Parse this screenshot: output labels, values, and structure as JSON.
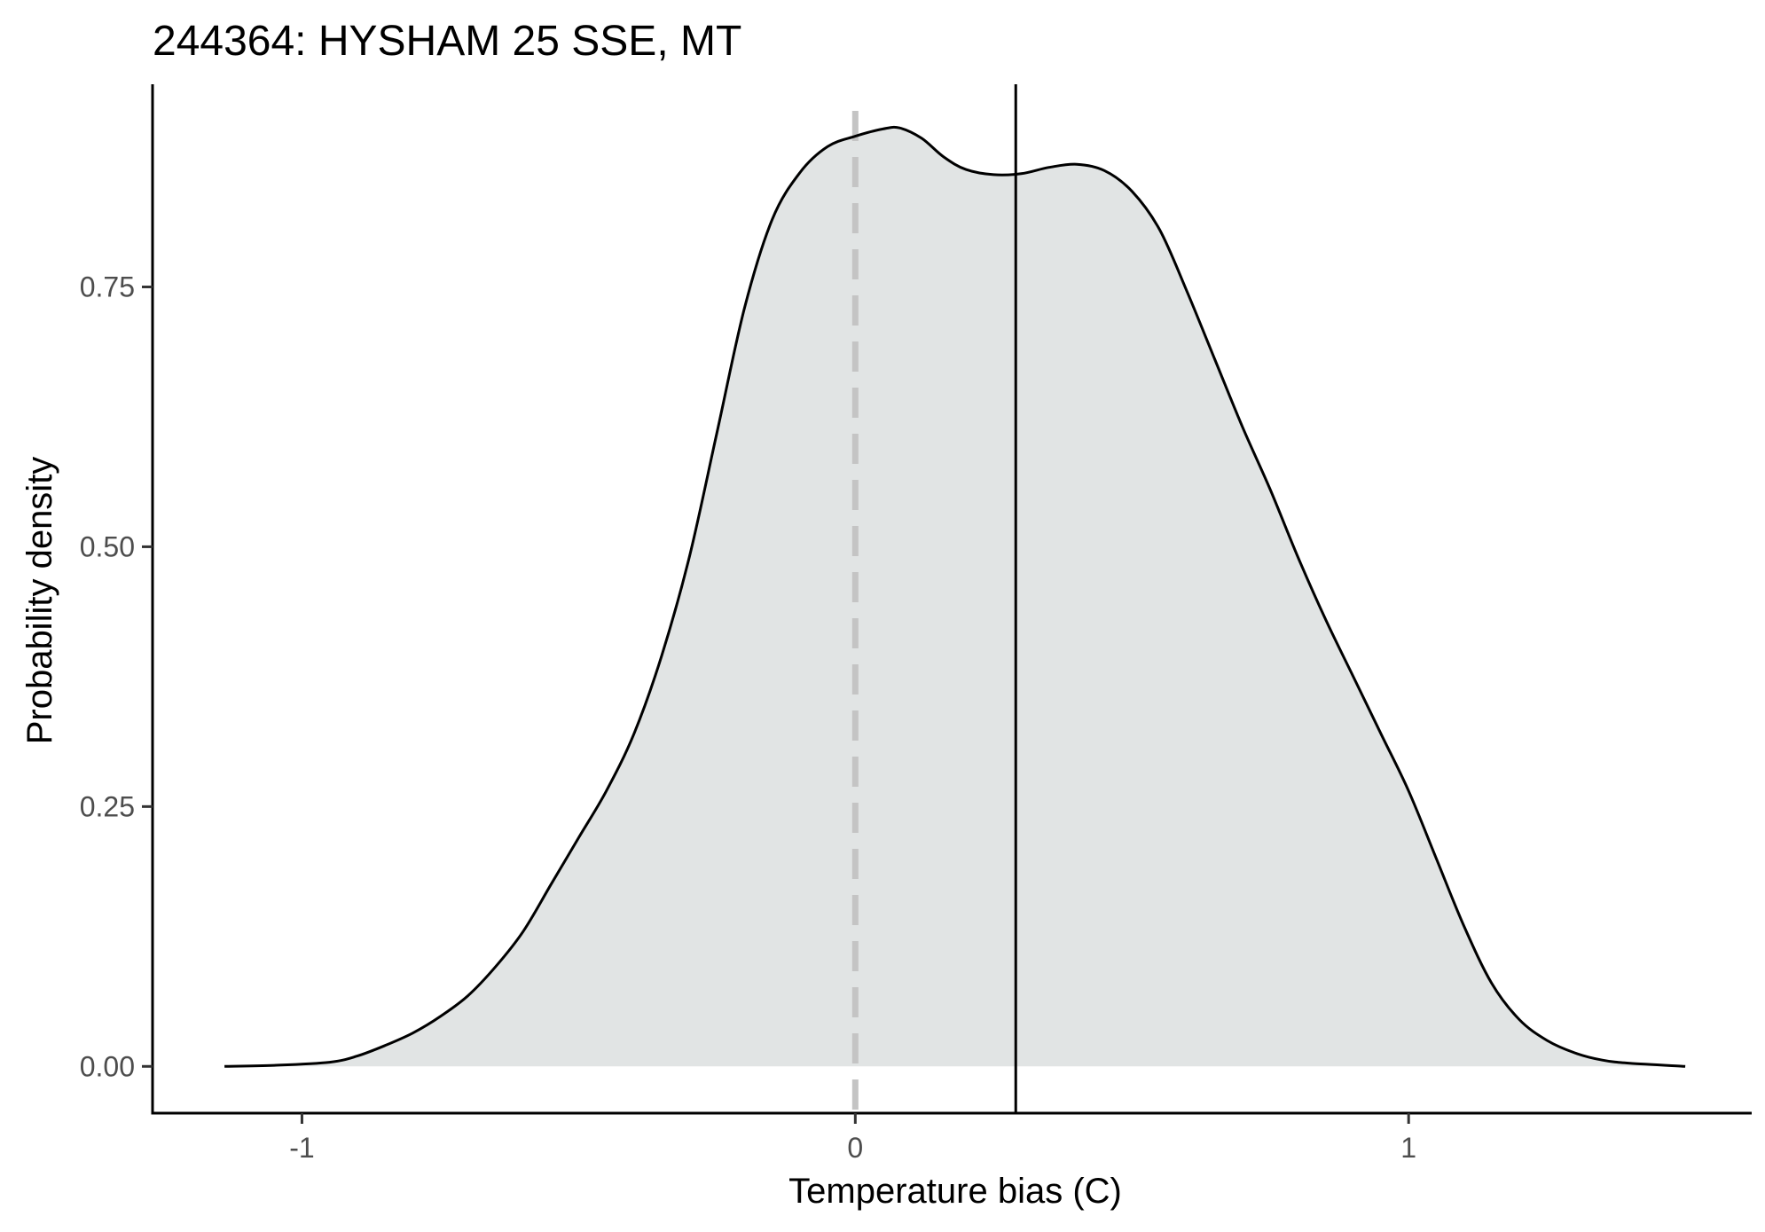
{
  "chart_data": {
    "type": "area",
    "title": "244364: HYSHAM 25 SSE, MT",
    "xlabel": "Temperature bias (C)",
    "ylabel": "Probability density",
    "xlim": [
      -1.27,
      1.62
    ],
    "ylim": [
      -0.045,
      0.945
    ],
    "x_ticks": [
      -1,
      0,
      1
    ],
    "x_tick_labels": [
      "-1",
      "0",
      "1"
    ],
    "y_ticks": [
      0,
      0.25,
      0.5,
      0.75
    ],
    "y_tick_labels": [
      "0.00",
      "0.25",
      "0.50",
      "0.75"
    ],
    "grid": false,
    "legend": "none",
    "reference_lines": [
      {
        "x": 0,
        "style": "dashed",
        "color": "#c4c4c4"
      },
      {
        "x": 0.29,
        "style": "solid",
        "color": "#000000"
      }
    ],
    "series": [
      {
        "fill": "#e1e4e4",
        "stroke": "#000000",
        "points": [
          [
            -1.14,
            0.0
          ],
          [
            -1.05,
            0.001
          ],
          [
            -0.95,
            0.004
          ],
          [
            -0.9,
            0.01
          ],
          [
            -0.85,
            0.02
          ],
          [
            -0.8,
            0.032
          ],
          [
            -0.75,
            0.048
          ],
          [
            -0.7,
            0.068
          ],
          [
            -0.65,
            0.096
          ],
          [
            -0.6,
            0.13
          ],
          [
            -0.55,
            0.175
          ],
          [
            -0.5,
            0.22
          ],
          [
            -0.45,
            0.265
          ],
          [
            -0.4,
            0.32
          ],
          [
            -0.35,
            0.395
          ],
          [
            -0.3,
            0.49
          ],
          [
            -0.25,
            0.61
          ],
          [
            -0.2,
            0.73
          ],
          [
            -0.15,
            0.815
          ],
          [
            -0.1,
            0.86
          ],
          [
            -0.05,
            0.885
          ],
          [
            0.0,
            0.895
          ],
          [
            0.05,
            0.902
          ],
          [
            0.08,
            0.903
          ],
          [
            0.12,
            0.893
          ],
          [
            0.16,
            0.875
          ],
          [
            0.2,
            0.863
          ],
          [
            0.25,
            0.858
          ],
          [
            0.3,
            0.859
          ],
          [
            0.35,
            0.865
          ],
          [
            0.4,
            0.868
          ],
          [
            0.45,
            0.862
          ],
          [
            0.5,
            0.842
          ],
          [
            0.55,
            0.805
          ],
          [
            0.6,
            0.745
          ],
          [
            0.65,
            0.68
          ],
          [
            0.7,
            0.615
          ],
          [
            0.75,
            0.555
          ],
          [
            0.8,
            0.49
          ],
          [
            0.85,
            0.43
          ],
          [
            0.9,
            0.375
          ],
          [
            0.95,
            0.32
          ],
          [
            1.0,
            0.265
          ],
          [
            1.05,
            0.2
          ],
          [
            1.1,
            0.135
          ],
          [
            1.15,
            0.08
          ],
          [
            1.2,
            0.045
          ],
          [
            1.25,
            0.025
          ],
          [
            1.3,
            0.013
          ],
          [
            1.35,
            0.006
          ],
          [
            1.4,
            0.003
          ],
          [
            1.5,
            0.0
          ]
        ]
      }
    ]
  }
}
